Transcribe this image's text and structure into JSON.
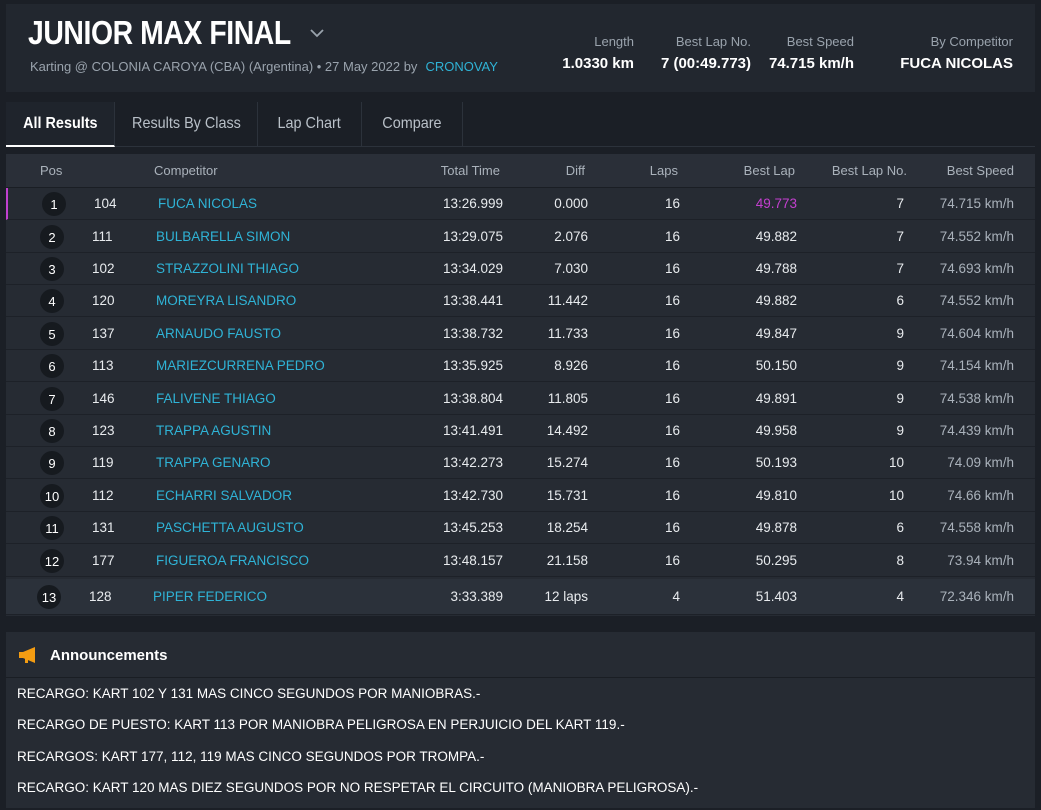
{
  "event": {
    "title": "JUNIOR MAX FINAL",
    "subtitle": "Karting @ COLONIA CAROYA (CBA) (Argentina) • 27 May 2022 by",
    "by": "CRONOVAY"
  },
  "stats": {
    "length_label": "Length",
    "length_value": "1.0330 km",
    "best_lap_no_label": "Best Lap No.",
    "best_lap_no_value": "7 (00:49.773)",
    "best_speed_label": "Best Speed",
    "best_speed_value": "74.715 km/h",
    "by_competitor_label": "By Competitor",
    "by_competitor_value": "FUCA NICOLAS"
  },
  "tabs": [
    "All Results",
    "Results By Class",
    "Lap Chart",
    "Compare"
  ],
  "table": {
    "headers": {
      "pos": "Pos",
      "competitor": "Competitor",
      "total_time": "Total Time",
      "diff": "Diff",
      "laps": "Laps",
      "best_lap": "Best Lap",
      "best_lap_no": "Best Lap No.",
      "best_speed": "Best Speed"
    },
    "rows": [
      {
        "pos": "1",
        "num": "104",
        "name": "FUCA NICOLAS",
        "total": "13:26.999",
        "diff": "0.000",
        "laps": "16",
        "best_lap": "49.773",
        "best_lap_no": "7",
        "speed": "74.715 km/h"
      },
      {
        "pos": "2",
        "num": "111",
        "name": "BULBARELLA SIMON",
        "total": "13:29.075",
        "diff": "2.076",
        "laps": "16",
        "best_lap": "49.882",
        "best_lap_no": "7",
        "speed": "74.552 km/h"
      },
      {
        "pos": "3",
        "num": "102",
        "name": "STRAZZOLINI THIAGO",
        "total": "13:34.029",
        "diff": "7.030",
        "laps": "16",
        "best_lap": "49.788",
        "best_lap_no": "7",
        "speed": "74.693 km/h"
      },
      {
        "pos": "4",
        "num": "120",
        "name": "MOREYRA LISANDRO",
        "total": "13:38.441",
        "diff": "11.442",
        "laps": "16",
        "best_lap": "49.882",
        "best_lap_no": "6",
        "speed": "74.552 km/h"
      },
      {
        "pos": "5",
        "num": "137",
        "name": "ARNAUDO FAUSTO",
        "total": "13:38.732",
        "diff": "11.733",
        "laps": "16",
        "best_lap": "49.847",
        "best_lap_no": "9",
        "speed": "74.604 km/h"
      },
      {
        "pos": "6",
        "num": "113",
        "name": "MARIEZCURRENA PEDRO",
        "total": "13:35.925",
        "diff": "8.926",
        "laps": "16",
        "best_lap": "50.150",
        "best_lap_no": "9",
        "speed": "74.154 km/h"
      },
      {
        "pos": "7",
        "num": "146",
        "name": "FALIVENE THIAGO",
        "total": "13:38.804",
        "diff": "11.805",
        "laps": "16",
        "best_lap": "49.891",
        "best_lap_no": "9",
        "speed": "74.538 km/h"
      },
      {
        "pos": "8",
        "num": "123",
        "name": "TRAPPA AGUSTIN",
        "total": "13:41.491",
        "diff": "14.492",
        "laps": "16",
        "best_lap": "49.958",
        "best_lap_no": "9",
        "speed": "74.439 km/h"
      },
      {
        "pos": "9",
        "num": "119",
        "name": "TRAPPA GENARO",
        "total": "13:42.273",
        "diff": "15.274",
        "laps": "16",
        "best_lap": "50.193",
        "best_lap_no": "10",
        "speed": "74.09 km/h"
      },
      {
        "pos": "10",
        "num": "112",
        "name": "ECHARRI SALVADOR",
        "total": "13:42.730",
        "diff": "15.731",
        "laps": "16",
        "best_lap": "49.810",
        "best_lap_no": "10",
        "speed": "74.66 km/h"
      },
      {
        "pos": "11",
        "num": "131",
        "name": "PASCHETTA AUGUSTO",
        "total": "13:45.253",
        "diff": "18.254",
        "laps": "16",
        "best_lap": "49.878",
        "best_lap_no": "6",
        "speed": "74.558 km/h"
      },
      {
        "pos": "12",
        "num": "177",
        "name": "FIGUEROA FRANCISCO",
        "total": "13:48.157",
        "diff": "21.158",
        "laps": "16",
        "best_lap": "50.295",
        "best_lap_no": "8",
        "speed": "73.94 km/h"
      },
      {
        "pos": "13",
        "num": "128",
        "name": "PIPER FEDERICO",
        "total": "3:33.389",
        "diff": "12 laps",
        "laps": "4",
        "best_lap": "51.403",
        "best_lap_no": "4",
        "speed": "72.346 km/h"
      }
    ]
  },
  "announcements": {
    "title": "Announcements",
    "items": [
      "RECARGO: KART 102 Y 131 MAS CINCO SEGUNDOS POR MANIOBRAS.-",
      "RECARGO DE PUESTO: KART 113 POR MANIOBRA PELIGROSA EN PERJUICIO DEL KART 119.-",
      "RECARGOS: KART 177, 112, 119 MAS CINCO SEGUNDOS POR TROMPA.-",
      "RECARGO: KART 120 MAS DIEZ SEGUNDOS POR NO RESPETAR EL CIRCUITO (MANIOBRA PELIGROSA).-"
    ]
  },
  "colors": {
    "accent_link": "#2fb3d6",
    "best_lap_highlight": "#c43fd0",
    "announcement_icon": "#f39c12"
  },
  "icons": {
    "title_dropdown": "chevron-down-icon",
    "announcement": "megaphone-icon"
  }
}
